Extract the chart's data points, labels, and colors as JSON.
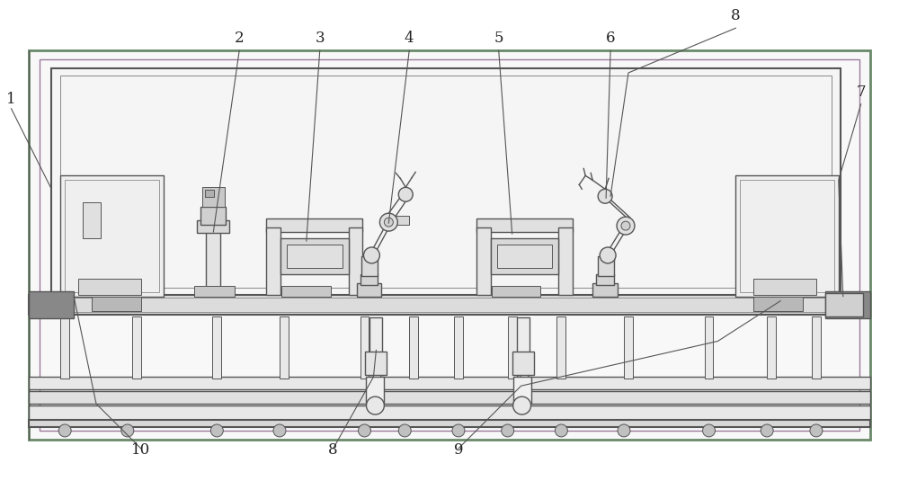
{
  "bg_color": "#ffffff",
  "lc": "#555555",
  "lc2": "#777777",
  "fc_light": "#f0f0f0",
  "fc_med": "#e0e0e0",
  "fc_dark": "#c8c8c8",
  "fc_darker": "#aaaaaa",
  "fc_white": "#fafafa",
  "green_border": "#7a9a7a",
  "purple_border": "#9a7a9a",
  "figsize": [
    10.0,
    5.45
  ],
  "dpi": 100
}
